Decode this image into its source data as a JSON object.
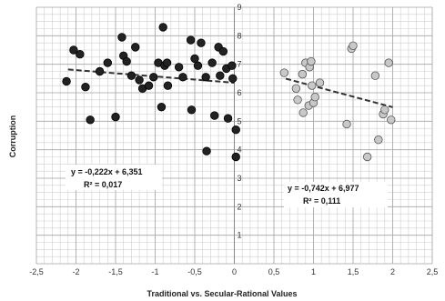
{
  "chart_data": {
    "type": "scatter",
    "xlabel": "Traditional vs. Secular-Rational Values",
    "ylabel": "Corruption",
    "xlim": [
      -2.5,
      2.5
    ],
    "ylim": [
      0,
      9
    ],
    "grid": true,
    "x_minor_step": 0.1,
    "y_minor_step": 0.25,
    "x_tick_labels": [
      "-2,5",
      "-2",
      "-1,5",
      "-1",
      "-0,5",
      "0",
      "0,5",
      "1",
      "1,5",
      "2",
      "2,5"
    ],
    "x_tick_values": [
      -2.5,
      -2,
      -1.5,
      -1,
      -0.5,
      0,
      0.5,
      1,
      1.5,
      2,
      2.5
    ],
    "y_tick_labels": [
      "0",
      "1",
      "2",
      "3",
      "4",
      "5",
      "6",
      "7",
      "8",
      "9"
    ],
    "y_tick_values": [
      0,
      1,
      2,
      3,
      4,
      5,
      6,
      7,
      8,
      9
    ],
    "series": [
      {
        "color": "#222222",
        "trendline": {
          "slope": -0.222,
          "intercept": 6.351,
          "x_range": [
            -2.1,
            0
          ]
        },
        "equation": "y = -0,222x + 6,351",
        "r_squared": "R² = 0,017",
        "points": [
          [
            -2.03,
            7.5
          ],
          [
            -1.95,
            7.35
          ],
          [
            -2.12,
            6.4
          ],
          [
            -1.88,
            6.2
          ],
          [
            -1.82,
            5.05
          ],
          [
            -1.7,
            6.75
          ],
          [
            -1.6,
            7.05
          ],
          [
            -1.5,
            5.15
          ],
          [
            -1.42,
            7.95
          ],
          [
            -1.4,
            7.3
          ],
          [
            -1.36,
            7.1
          ],
          [
            -1.3,
            6.6
          ],
          [
            -1.25,
            7.6
          ],
          [
            -1.2,
            6.45
          ],
          [
            -1.16,
            6.15
          ],
          [
            -1.08,
            6.25
          ],
          [
            -1.02,
            6.55
          ],
          [
            -0.96,
            7.05
          ],
          [
            -0.92,
            5.5
          ],
          [
            -0.9,
            8.3
          ],
          [
            -0.88,
            6.95
          ],
          [
            -0.85,
            7.05
          ],
          [
            -0.84,
            6.25
          ],
          [
            -0.7,
            6.9
          ],
          [
            -0.65,
            6.55
          ],
          [
            -0.55,
            7.85
          ],
          [
            -0.54,
            5.4
          ],
          [
            -0.5,
            7.2
          ],
          [
            -0.46,
            6.95
          ],
          [
            -0.42,
            7.75
          ],
          [
            -0.36,
            6.55
          ],
          [
            -0.35,
            3.95
          ],
          [
            -0.28,
            7.05
          ],
          [
            -0.25,
            5.2
          ],
          [
            -0.2,
            7.6
          ],
          [
            -0.18,
            6.6
          ],
          [
            -0.14,
            7.45
          ],
          [
            -0.1,
            6.85
          ],
          [
            -0.08,
            5.1
          ],
          [
            -0.03,
            6.95
          ],
          [
            -0.02,
            6.5
          ],
          [
            0.02,
            4.7
          ],
          [
            0.02,
            3.75
          ]
        ]
      },
      {
        "color": "#c8c8c8",
        "trendline": {
          "slope": -0.742,
          "intercept": 6.977,
          "x_range": [
            0.65,
            2
          ]
        },
        "equation": "y = -0,742x + 6,977",
        "r_squared": "R² = 0,111",
        "points": [
          [
            0.63,
            6.7
          ],
          [
            0.78,
            6.15
          ],
          [
            0.8,
            5.75
          ],
          [
            0.86,
            6.65
          ],
          [
            0.87,
            5.3
          ],
          [
            0.9,
            7.05
          ],
          [
            0.94,
            5.55
          ],
          [
            0.95,
            6.9
          ],
          [
            0.97,
            7.1
          ],
          [
            0.98,
            6.25
          ],
          [
            1.0,
            5.65
          ],
          [
            1.02,
            5.85
          ],
          [
            1.08,
            6.35
          ],
          [
            1.42,
            4.9
          ],
          [
            1.48,
            7.55
          ],
          [
            1.5,
            7.65
          ],
          [
            1.68,
            3.75
          ],
          [
            1.78,
            6.6
          ],
          [
            1.82,
            4.35
          ],
          [
            1.88,
            5.25
          ],
          [
            1.9,
            5.4
          ],
          [
            1.95,
            7.05
          ],
          [
            1.98,
            5.05
          ]
        ]
      }
    ]
  }
}
